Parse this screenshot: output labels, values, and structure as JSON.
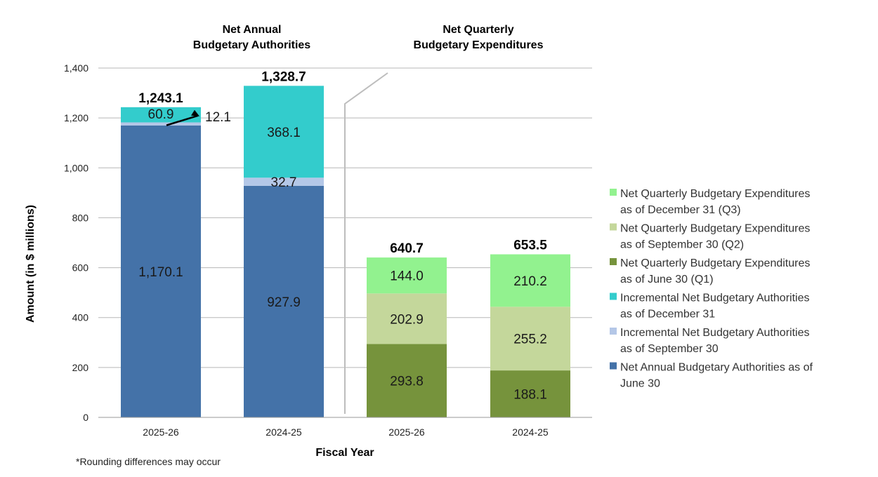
{
  "chart_data": {
    "type": "bar",
    "stacked": true,
    "group_titles": [
      [
        "Net Annual",
        "Budgetary Authorities"
      ],
      [
        "Net Quarterly",
        "Budgetary Expenditures"
      ]
    ],
    "categories": [
      "2025-26",
      "2024-25",
      "2025-26",
      "2024-25"
    ],
    "xlabel": "Fiscal Year",
    "ylabel": "Amount (in $ millions)",
    "ylim": [
      0,
      1400
    ],
    "yticks": [
      0,
      200,
      400,
      600,
      800,
      1000,
      1200,
      1400
    ],
    "ytick_labels": [
      "0",
      "200",
      "400",
      "600",
      "800",
      "1,000",
      "1,200",
      "1,400"
    ],
    "grid": true,
    "legend_position": "right",
    "series": [
      {
        "name": "Net Annual Budgetary Authorities as of June 30",
        "color": "#4472a8",
        "values": [
          1170.1,
          927.9,
          null,
          null
        ],
        "labels": [
          "1,170.1",
          "927.9",
          "",
          ""
        ],
        "text_color": "#1a1a1a"
      },
      {
        "name": "Incremental Net Budgetary Authorities as of September 30",
        "color": "#b4c7e7",
        "values": [
          12.1,
          32.7,
          null,
          null
        ],
        "labels": [
          "12.1",
          "32.7",
          "",
          ""
        ],
        "text_color": "#1a1a1a"
      },
      {
        "name": "Incremental Net Budgetary Authorities as of December 31",
        "color": "#33cccc",
        "values": [
          60.9,
          368.1,
          null,
          null
        ],
        "labels": [
          "60.9",
          "368.1",
          "",
          ""
        ],
        "text_color": "#1a1a1a"
      },
      {
        "name": "Net Quarterly Budgetary Expenditures as of June 30 (Q1)",
        "color": "#76933c",
        "values": [
          null,
          null,
          293.8,
          188.1
        ],
        "labels": [
          "",
          "",
          "293.8",
          "188.1"
        ],
        "text_color": "#000000"
      },
      {
        "name": "Net Quarterly Budgetary Expenditures as of September 30 (Q2)",
        "color": "#c4d79b",
        "values": [
          null,
          null,
          202.9,
          255.2
        ],
        "labels": [
          "",
          "",
          "202.9",
          "255.2"
        ],
        "text_color": "#1a1a1a"
      },
      {
        "name": "Net Quarterly Budgetary Expenditures as of December 31 (Q3)",
        "color": "#92f28f",
        "values": [
          null,
          null,
          144.0,
          210.2
        ],
        "labels": [
          "",
          "",
          "144.0",
          "210.2"
        ],
        "text_color": "#1a1a1a"
      }
    ],
    "totals": [
      "1,243.1",
      "1,328.7",
      "640.7",
      "653.5"
    ],
    "legend": [
      {
        "lines": [
          "Net Quarterly Budgetary Expenditures",
          "as of December 31 (Q3)"
        ],
        "color": "#92f28f"
      },
      {
        "lines": [
          "Net Quarterly Budgetary Expenditures",
          "as of September 30 (Q2)"
        ],
        "color": "#c4d79b"
      },
      {
        "lines": [
          "Net Quarterly Budgetary Expenditures",
          "as of June 30 (Q1)"
        ],
        "color": "#76933c"
      },
      {
        "lines": [
          "Incremental Net Budgetary Authorities",
          "as of December 31"
        ],
        "color": "#33cccc"
      },
      {
        "lines": [
          "Incremental Net Budgetary Authorities",
          "as of September 30"
        ],
        "color": "#b4c7e7"
      },
      {
        "lines": [
          "Net Annual Budgetary Authorities as of",
          "June 30"
        ],
        "color": "#4472a8"
      }
    ],
    "footnote": "*Rounding differences may occur"
  }
}
